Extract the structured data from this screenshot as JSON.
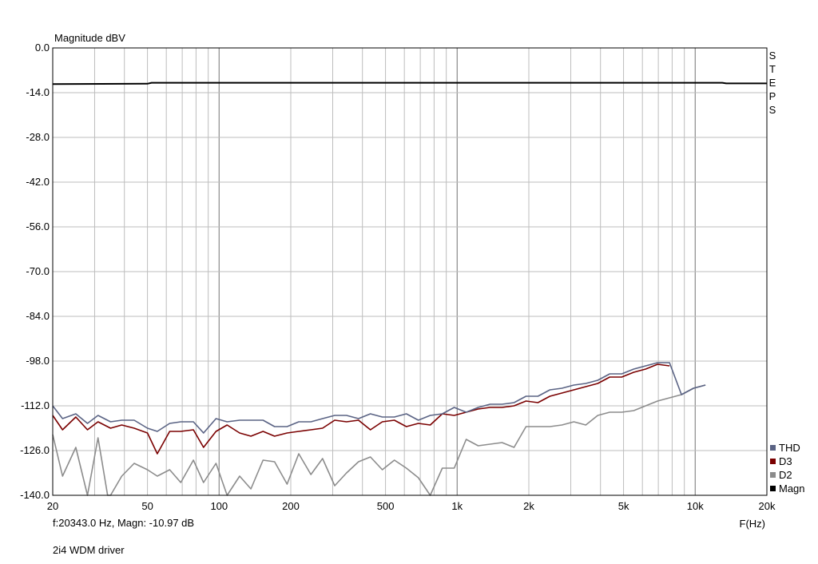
{
  "status": {
    "cursor_readout": "f:20343.0 Hz, Magn: -10.97 dB",
    "driver": "2i4 WDM driver"
  },
  "colors": {
    "THD": "#5a6384",
    "D3": "#7a0000",
    "D2": "#8c8c8c",
    "Magn": "#000000",
    "grid": "#bdbdbd",
    "steps": "#b03030"
  },
  "chart_data": {
    "type": "line",
    "title": "Magnitude dBV",
    "xlabel": "F(Hz)",
    "ylabel": "",
    "xscale": "log",
    "xlim": [
      20,
      20000
    ],
    "ylim": [
      -140,
      0
    ],
    "grid": true,
    "legend_position": "bottom-right",
    "side_label": "STEPS",
    "y_ticks": [
      "0.0",
      "-14.0",
      "-28.0",
      "-42.0",
      "-56.0",
      "-70.0",
      "-84.0",
      "-98.0",
      "-112.0",
      "-126.0",
      "-140.0"
    ],
    "x_ticks": [
      {
        "value": 20,
        "label": "20"
      },
      {
        "value": 50,
        "label": "50"
      },
      {
        "value": 100,
        "label": "100"
      },
      {
        "value": 200,
        "label": "200"
      },
      {
        "value": 500,
        "label": "500"
      },
      {
        "value": 1000,
        "label": "1k"
      },
      {
        "value": 2000,
        "label": "2k"
      },
      {
        "value": 5000,
        "label": "5k"
      },
      {
        "value": 10000,
        "label": "10k"
      },
      {
        "value": 20000,
        "label": "20k"
      }
    ],
    "series": [
      {
        "name": "THD",
        "points": [
          [
            20,
            -112
          ],
          [
            22,
            -116
          ],
          [
            25,
            -114.5
          ],
          [
            28,
            -117.5
          ],
          [
            31,
            -115
          ],
          [
            35,
            -117
          ],
          [
            39,
            -116.5
          ],
          [
            44,
            -116.5
          ],
          [
            50,
            -119
          ],
          [
            55,
            -120
          ],
          [
            62,
            -117.5
          ],
          [
            69,
            -117
          ],
          [
            78,
            -117
          ],
          [
            86,
            -120.5
          ],
          [
            97,
            -116
          ],
          [
            108,
            -117
          ],
          [
            122,
            -116.5
          ],
          [
            136,
            -116.5
          ],
          [
            153,
            -116.5
          ],
          [
            171,
            -118.5
          ],
          [
            193,
            -118.5
          ],
          [
            216,
            -117
          ],
          [
            243,
            -117
          ],
          [
            272,
            -116
          ],
          [
            306,
            -115
          ],
          [
            343,
            -115
          ],
          [
            385,
            -116
          ],
          [
            432,
            -114.5
          ],
          [
            485,
            -115.5
          ],
          [
            545,
            -115.5
          ],
          [
            612,
            -114.5
          ],
          [
            687,
            -116.5
          ],
          [
            771,
            -115
          ],
          [
            866,
            -114.5
          ],
          [
            972,
            -112.5
          ],
          [
            1091,
            -114
          ],
          [
            1225,
            -112.5
          ],
          [
            1375,
            -111.5
          ],
          [
            1544,
            -111.5
          ],
          [
            1733,
            -111
          ],
          [
            1946,
            -109
          ],
          [
            2185,
            -109
          ],
          [
            2453,
            -107
          ],
          [
            2754,
            -106.5
          ],
          [
            3092,
            -105.5
          ],
          [
            3471,
            -105
          ],
          [
            3897,
            -104
          ],
          [
            4375,
            -102
          ],
          [
            4911,
            -102
          ],
          [
            5514,
            -100.5
          ],
          [
            6190,
            -99.5
          ],
          [
            6950,
            -98.5
          ],
          [
            7800,
            -98.5
          ],
          [
            8756,
            -108.5
          ],
          [
            9830,
            -106.5
          ],
          [
            11036,
            -105.5
          ]
        ]
      },
      {
        "name": "D3",
        "points": [
          [
            20,
            -115
          ],
          [
            22,
            -119.5
          ],
          [
            25,
            -115.5
          ],
          [
            28,
            -119.5
          ],
          [
            31,
            -117
          ],
          [
            35,
            -119
          ],
          [
            39,
            -118
          ],
          [
            44,
            -119
          ],
          [
            50,
            -120.5
          ],
          [
            55,
            -127
          ],
          [
            62,
            -120
          ],
          [
            69,
            -120
          ],
          [
            78,
            -119.5
          ],
          [
            86,
            -125
          ],
          [
            97,
            -120
          ],
          [
            108,
            -118
          ],
          [
            122,
            -120.5
          ],
          [
            136,
            -121.5
          ],
          [
            153,
            -120
          ],
          [
            171,
            -121.5
          ],
          [
            193,
            -120.5
          ],
          [
            216,
            -120
          ],
          [
            243,
            -119.5
          ],
          [
            272,
            -119
          ],
          [
            306,
            -116.5
          ],
          [
            343,
            -117
          ],
          [
            385,
            -116.5
          ],
          [
            432,
            -119.5
          ],
          [
            485,
            -117
          ],
          [
            545,
            -116.5
          ],
          [
            612,
            -118.5
          ],
          [
            687,
            -117.5
          ],
          [
            771,
            -118
          ],
          [
            866,
            -114.5
          ],
          [
            972,
            -115
          ],
          [
            1091,
            -114
          ],
          [
            1225,
            -113
          ],
          [
            1375,
            -112.5
          ],
          [
            1544,
            -112.5
          ],
          [
            1733,
            -112
          ],
          [
            1946,
            -110.5
          ],
          [
            2185,
            -111
          ],
          [
            2453,
            -109
          ],
          [
            2754,
            -108
          ],
          [
            3092,
            -107
          ],
          [
            3471,
            -106
          ],
          [
            3897,
            -105
          ],
          [
            4375,
            -103
          ],
          [
            4911,
            -103
          ],
          [
            5514,
            -101.5
          ],
          [
            6190,
            -100.5
          ],
          [
            6950,
            -99
          ],
          [
            7800,
            -99.5
          ]
        ]
      },
      {
        "name": "D2",
        "points": [
          [
            20,
            -121
          ],
          [
            22,
            -134
          ],
          [
            25,
            -125
          ],
          [
            28,
            -140
          ],
          [
            31,
            -122
          ],
          [
            34,
            -140
          ],
          [
            35,
            -140
          ],
          [
            39,
            -134
          ],
          [
            44,
            -130
          ],
          [
            50,
            -132
          ],
          [
            55,
            -134
          ],
          [
            62,
            -132
          ],
          [
            69,
            -136
          ],
          [
            78,
            -129
          ],
          [
            86,
            -136
          ],
          [
            97,
            -130
          ],
          [
            108,
            -140
          ],
          [
            122,
            -134
          ],
          [
            136,
            -138
          ],
          [
            153,
            -129
          ],
          [
            171,
            -129.5
          ],
          [
            193,
            -136.5
          ],
          [
            216,
            -127
          ],
          [
            243,
            -133.5
          ],
          [
            272,
            -128.5
          ],
          [
            306,
            -137
          ],
          [
            343,
            -133
          ],
          [
            385,
            -129.5
          ],
          [
            432,
            -128
          ],
          [
            485,
            -132
          ],
          [
            545,
            -129
          ],
          [
            612,
            -131.5
          ],
          [
            687,
            -134.5
          ],
          [
            771,
            -140
          ],
          [
            866,
            -131.5
          ],
          [
            972,
            -131.5
          ],
          [
            1091,
            -122.5
          ],
          [
            1225,
            -124.5
          ],
          [
            1375,
            -124
          ],
          [
            1544,
            -123.5
          ],
          [
            1733,
            -125
          ],
          [
            1946,
            -118.5
          ],
          [
            2185,
            -118.5
          ],
          [
            2453,
            -118.5
          ],
          [
            2754,
            -118
          ],
          [
            3092,
            -117
          ],
          [
            3471,
            -118
          ],
          [
            3897,
            -115
          ],
          [
            4375,
            -114
          ],
          [
            4911,
            -114
          ],
          [
            5514,
            -113.5
          ],
          [
            6190,
            -112
          ],
          [
            6950,
            -110.5
          ],
          [
            7800,
            -109.5
          ],
          [
            8756,
            -108.5
          ],
          [
            9830,
            -106.5
          ],
          [
            11036,
            -105.5
          ]
        ]
      },
      {
        "name": "Magn",
        "points": [
          [
            20,
            -11.3
          ],
          [
            50,
            -11.2
          ],
          [
            52,
            -10.9
          ],
          [
            200,
            -10.9
          ],
          [
            1000,
            -10.9
          ],
          [
            5000,
            -10.9
          ],
          [
            13000,
            -10.9
          ],
          [
            13500,
            -11.1
          ],
          [
            20000,
            -11.1
          ]
        ]
      }
    ]
  }
}
